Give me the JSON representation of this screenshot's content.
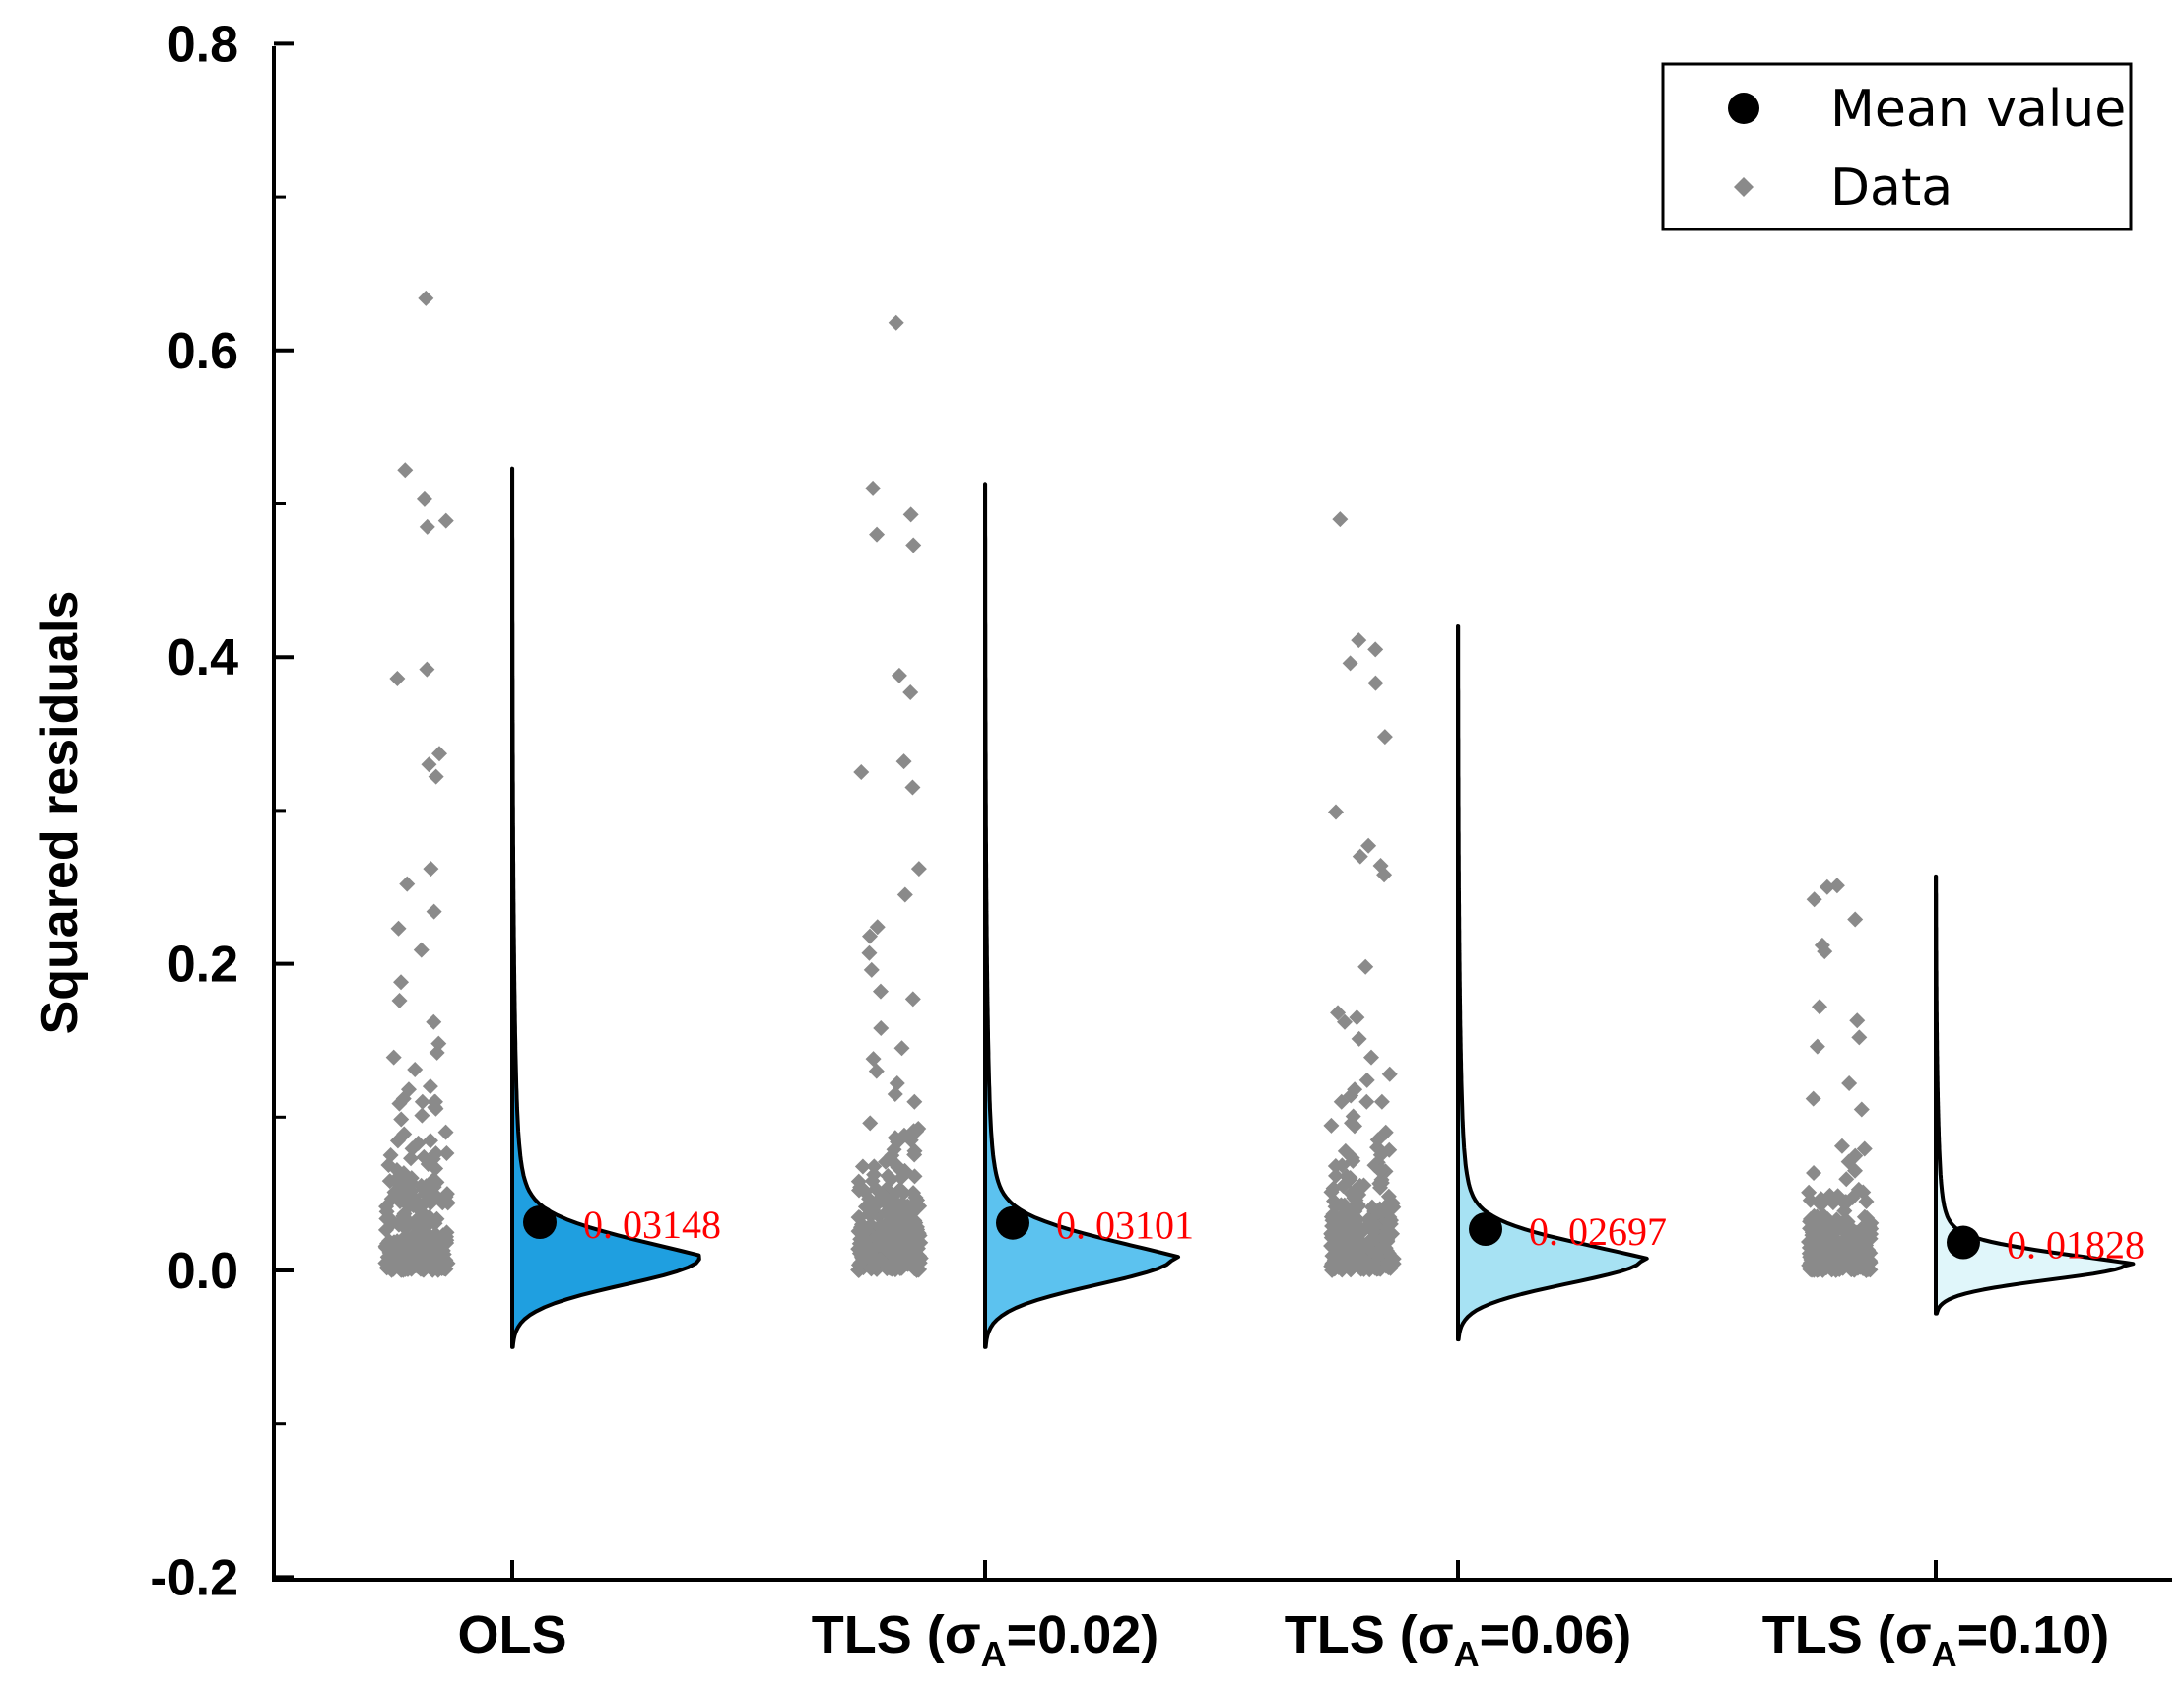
{
  "chart_data": {
    "type": "raincloud",
    "ylabel": "Squared residuals",
    "xlabel": "",
    "ylim": [
      -0.2,
      0.8
    ],
    "yticks": [
      "-0.2",
      "0.0",
      "0.2",
      "0.4",
      "0.6",
      "0.8"
    ],
    "ytick_values": [
      -0.2,
      0.0,
      0.2,
      0.4,
      0.6,
      0.8
    ],
    "minor_ytick_values": [
      -0.1,
      0.1,
      0.3,
      0.5,
      0.7
    ],
    "colors": {
      "point": "#8a8a8a",
      "mean_label": "#ff0000",
      "mean_dot": "#000000"
    },
    "legend": {
      "position": "top-right",
      "mean_label": "Mean value",
      "data_label": "Data"
    },
    "categories": [
      {
        "name": "OLS",
        "label_main": "OLS",
        "label_sub": "",
        "label_tail": "",
        "mean": 0.03148,
        "mean_text": "0. 03148",
        "fill": "#1f9fe0",
        "curve_top": 0.523,
        "curve_bottom": -0.05,
        "density_peak": 0.008,
        "density_width": 0.031,
        "peak_height": 1.0,
        "outliers": [
          0.634,
          0.522,
          0.503,
          0.489,
          0.485,
          0.392,
          0.386,
          0.337,
          0.33,
          0.322,
          0.262,
          0.252,
          0.234,
          0.223,
          0.209,
          0.188,
          0.176,
          0.162,
          0.148,
          0.142,
          0.139,
          0.131,
          0.12,
          0.118,
          0.112
        ]
      },
      {
        "name": "TLS (σA=0.02)",
        "label_main": "TLS (σ",
        "label_sub": "A",
        "label_tail": "=0.02)",
        "mean": 0.03101,
        "mean_text": "0. 03101",
        "fill": "#5cc2ef",
        "curve_top": 0.513,
        "curve_bottom": -0.05,
        "density_peak": 0.008,
        "density_width": 0.031,
        "peak_height": 1.0,
        "outliers": [
          0.618,
          0.51,
          0.493,
          0.48,
          0.473,
          0.388,
          0.377,
          0.332,
          0.325,
          0.315,
          0.262,
          0.245,
          0.224,
          0.218,
          0.207,
          0.196,
          0.182,
          0.177,
          0.158,
          0.145,
          0.138,
          0.13,
          0.122,
          0.115
        ]
      },
      {
        "name": "TLS (σA=0.06)",
        "label_main": "TLS (σ",
        "label_sub": "A",
        "label_tail": "=0.06)",
        "mean": 0.02697,
        "mean_text": "0. 02697",
        "fill": "#a7e2f3",
        "curve_top": 0.42,
        "curve_bottom": -0.045,
        "density_peak": 0.007,
        "density_width": 0.028,
        "peak_height": 0.98,
        "outliers": [
          0.49,
          0.411,
          0.405,
          0.396,
          0.383,
          0.348,
          0.299,
          0.277,
          0.27,
          0.264,
          0.258,
          0.198,
          0.168,
          0.165,
          0.162,
          0.151,
          0.139,
          0.128,
          0.124,
          0.118,
          0.114
        ]
      },
      {
        "name": "TLS (σA=0.10)",
        "label_main": "TLS (σ",
        "label_sub": "A",
        "label_tail": "=0.10)",
        "mean": 0.01828,
        "mean_text": "0. 01828",
        "fill": "#e0f6fa",
        "curve_top": 0.257,
        "curve_bottom": -0.028,
        "density_peak": 0.004,
        "density_width": 0.018,
        "peak_height": 0.99,
        "outliers": [
          0.251,
          0.25,
          0.242,
          0.229,
          0.212,
          0.208,
          0.172,
          0.163,
          0.152,
          0.146,
          0.122,
          0.112,
          0.105
        ]
      }
    ]
  }
}
